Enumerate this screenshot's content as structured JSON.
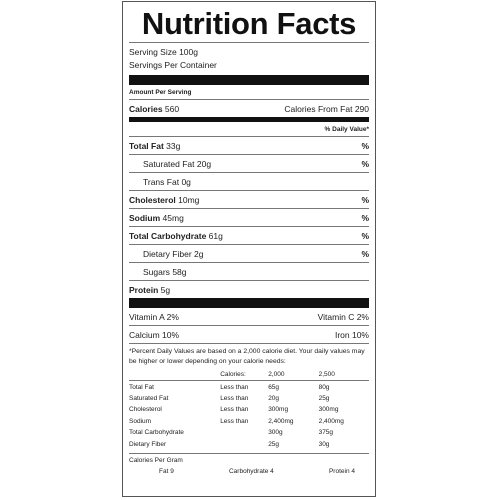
{
  "title": "Nutrition Facts",
  "serving_size": "Serving Size  100g",
  "servings_per_container": "Servings Per Container",
  "amount_per_serving": "Amount Per Serving",
  "calories": {
    "label": "Calories",
    "value": "560",
    "from_fat_label": "Calories From Fat",
    "from_fat_value": "290"
  },
  "daily_value_header": "% Daily Value*",
  "nutrients": [
    {
      "label": "Total Fat",
      "value": "33g",
      "pct": "%"
    },
    {
      "label": "Saturated Fat",
      "value": "20g",
      "pct": "%"
    },
    {
      "label": "Trans Fat",
      "value": "0g",
      "pct": ""
    },
    {
      "label": "Cholesterol",
      "value": "10mg",
      "pct": "%"
    },
    {
      "label": "Sodium",
      "value": "45mg",
      "pct": "%"
    },
    {
      "label": "Total Carbohydrate",
      "value": "61g",
      "pct": "%"
    },
    {
      "label": "Dietary Fiber",
      "value": "2g",
      "pct": "%"
    },
    {
      "label": "Sugars",
      "value": "58g",
      "pct": ""
    },
    {
      "label": "Protein",
      "value": "5g",
      "pct": ""
    }
  ],
  "vitamins": [
    {
      "left": "Vitamin A 2%",
      "right": "Vitamin C 2%"
    },
    {
      "left": "Calcium 10%",
      "right": "Iron 10%"
    }
  ],
  "footnote": "*Percent Daily Values are based on a 2,000 calorie diet. Your daily values may be higher or lower depending on your calorie needs:",
  "dv_table": {
    "header": [
      "",
      "Calories:",
      "2,000",
      "2,500"
    ],
    "rows": [
      [
        "Total Fat",
        "Less than",
        "65g",
        "80g"
      ],
      [
        "Saturated Fat",
        "Less than",
        "20g",
        "25g"
      ],
      [
        "Cholesterol",
        "Less than",
        "300mg",
        "300mg"
      ],
      [
        "Sodium",
        "Less than",
        "2,400mg",
        "2,400mg"
      ],
      [
        "Total Carbohydrate",
        "",
        "300g",
        "375g"
      ],
      [
        "Dietary Fiber",
        "",
        "25g",
        "30g"
      ]
    ]
  },
  "calories_per_gram": {
    "label": "Calories Per Gram",
    "fat": "Fat 9",
    "carbohydrate": "Carbohydrate 4",
    "protein": "Protein 4"
  }
}
